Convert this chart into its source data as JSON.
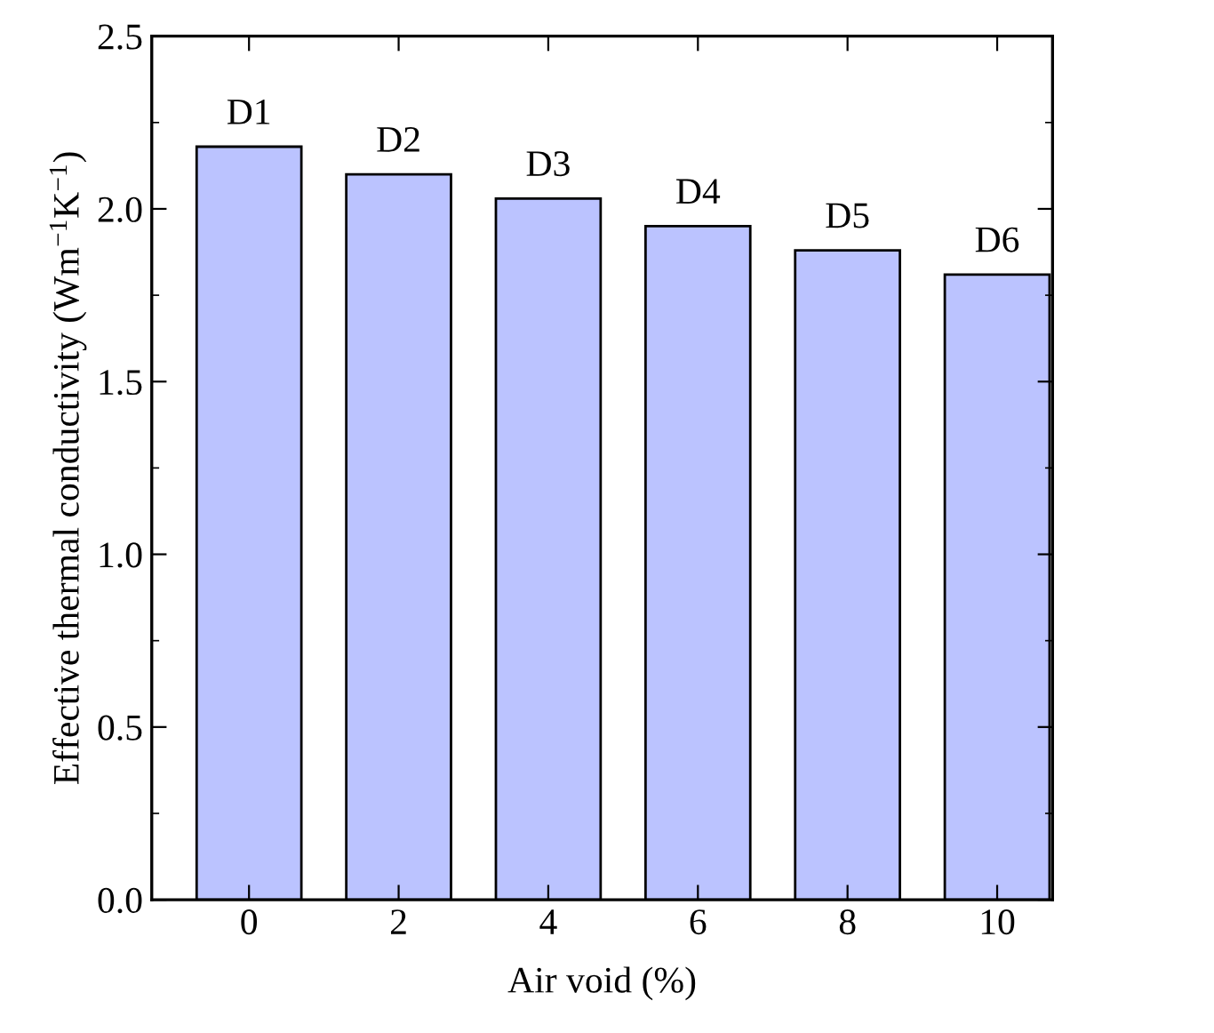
{
  "chart_data": {
    "type": "bar",
    "xlabel": "Air void (%)",
    "ylabel": "Effective thermal conductivity (Wm$^{−1}$K$^{−1}$)",
    "categories": [
      "0",
      "2",
      "4",
      "6",
      "8",
      "10"
    ],
    "values": [
      2.18,
      2.1,
      2.03,
      1.95,
      1.88,
      1.81
    ],
    "color": "#bbc3ff",
    "ylim": [
      0,
      2.5
    ],
    "yticks": [
      {
        "value": 0,
        "label": "0.0"
      },
      {
        "value": 0.5,
        "label": "0.5"
      },
      {
        "value": 1,
        "label": "1.0"
      },
      {
        "value": 1.5,
        "label": "1.5"
      },
      {
        "value": 2,
        "label": "2.0"
      },
      {
        "value": 2.5,
        "label": "2.5"
      }
    ],
    "annotations": [
      {
        "text": "D1",
        "x": "0",
        "y": 2.18
      },
      {
        "text": "D2",
        "x": "2",
        "y": 2.1
      },
      {
        "text": "D3",
        "x": "4",
        "y": 2.03
      },
      {
        "text": "D4",
        "x": "6",
        "y": 1.95
      },
      {
        "text": "D5",
        "x": "8",
        "y": 1.88
      },
      {
        "text": "D6",
        "x": "10",
        "y": 1.81
      }
    ],
    "grid": false,
    "legend": false
  }
}
